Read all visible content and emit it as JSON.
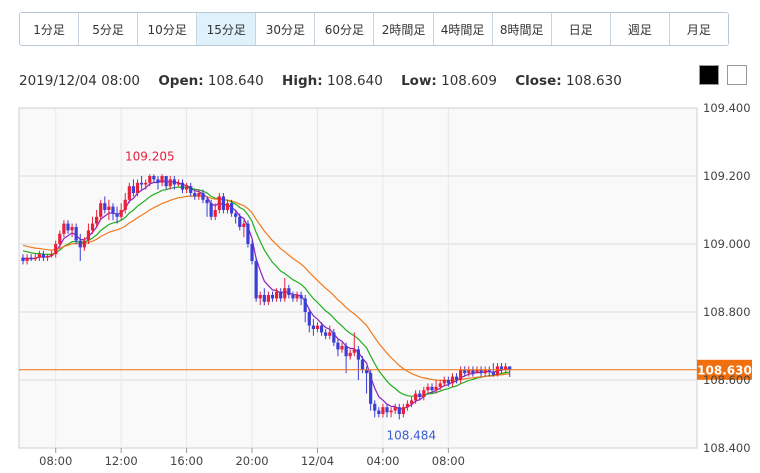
{
  "tabs": [
    {
      "label": "1分足"
    },
    {
      "label": "5分足"
    },
    {
      "label": "10分足"
    },
    {
      "label": "15分足",
      "active": true
    },
    {
      "label": "30分足"
    },
    {
      "label": "60分足"
    },
    {
      "label": "2時間足"
    },
    {
      "label": "4時間足"
    },
    {
      "label": "8時間足"
    },
    {
      "label": "日足"
    },
    {
      "label": "週足"
    },
    {
      "label": "月足"
    }
  ],
  "info": {
    "datetime": "2019/12/04 08:00",
    "open_label": "Open:",
    "open": "108.640",
    "high_label": "High:",
    "high": "108.640",
    "low_label": "Low:",
    "low": "108.609",
    "close_label": "Close:",
    "close": "108.630"
  },
  "colors": {
    "up": "#e8203c",
    "down": "#3b3fd6",
    "ma_short": "#8b22c9",
    "ma_mid": "#1fae1f",
    "ma_long": "#f07a1e",
    "last_price": "#f07010",
    "hi_label": "#e8203c",
    "lo_label": "#3b5ed6"
  },
  "chart_data": {
    "type": "candlestick",
    "y_ticks": [
      "109.400",
      "109.200",
      "109.000",
      "108.800",
      "108.600",
      "108.400"
    ],
    "ylim": [
      108.4,
      109.4
    ],
    "x_ticks": [
      "08:00",
      "12:00",
      "16:00",
      "20:00",
      "12/04",
      "04:00",
      "08:00"
    ],
    "high_label": "109.205",
    "low_label": "108.484",
    "last_price": "108.630",
    "start_time": "2019/12/03 06:00",
    "interval_minutes": 15,
    "candles": [
      [
        108.96,
        108.95,
        108.97,
        108.94
      ],
      [
        108.95,
        108.96,
        108.97,
        108.94
      ],
      [
        108.96,
        108.955,
        108.97,
        108.95
      ],
      [
        108.955,
        108.96,
        108.97,
        108.95
      ],
      [
        108.96,
        108.97,
        108.98,
        108.95
      ],
      [
        108.97,
        108.96,
        108.98,
        108.95
      ],
      [
        108.96,
        108.965,
        108.97,
        108.95
      ],
      [
        108.965,
        108.97,
        108.98,
        108.96
      ],
      [
        108.97,
        109.0,
        109.01,
        108.96
      ],
      [
        109.0,
        109.03,
        109.04,
        108.99
      ],
      [
        109.03,
        109.06,
        109.07,
        109.02
      ],
      [
        109.06,
        109.04,
        109.07,
        109.03
      ],
      [
        109.04,
        109.05,
        109.06,
        109.02
      ],
      [
        109.05,
        109.01,
        109.06,
        109.0
      ],
      [
        109.01,
        108.99,
        109.03,
        108.95
      ],
      [
        108.99,
        109.01,
        109.02,
        108.98
      ],
      [
        109.01,
        109.04,
        109.06,
        109.0
      ],
      [
        109.04,
        109.06,
        109.08,
        109.03
      ],
      [
        109.06,
        109.08,
        109.1,
        109.05
      ],
      [
        109.08,
        109.12,
        109.13,
        109.07
      ],
      [
        109.12,
        109.1,
        109.14,
        109.09
      ],
      [
        109.1,
        109.11,
        109.13,
        109.07
      ],
      [
        109.11,
        109.09,
        109.12,
        109.07
      ],
      [
        109.09,
        109.08,
        109.11,
        109.06
      ],
      [
        109.08,
        109.1,
        109.12,
        109.07
      ],
      [
        109.1,
        109.13,
        109.15,
        109.09
      ],
      [
        109.13,
        109.17,
        109.18,
        109.12
      ],
      [
        109.17,
        109.15,
        109.19,
        109.14
      ],
      [
        109.15,
        109.18,
        109.19,
        109.14
      ],
      [
        109.18,
        109.175,
        109.2,
        109.16
      ],
      [
        109.175,
        109.18,
        109.19,
        109.16
      ],
      [
        109.18,
        109.2,
        109.205,
        109.17
      ],
      [
        109.2,
        109.19,
        109.205,
        109.18
      ],
      [
        109.19,
        109.18,
        109.2,
        109.16
      ],
      [
        109.18,
        109.2,
        109.205,
        109.17
      ],
      [
        109.2,
        109.17,
        109.2,
        109.16
      ],
      [
        109.17,
        109.19,
        109.2,
        109.16
      ],
      [
        109.19,
        109.175,
        109.2,
        109.16
      ],
      [
        109.175,
        109.18,
        109.19,
        109.17
      ],
      [
        109.18,
        109.16,
        109.19,
        109.15
      ],
      [
        109.16,
        109.17,
        109.18,
        109.15
      ],
      [
        109.17,
        109.15,
        109.18,
        109.14
      ],
      [
        109.15,
        109.14,
        109.16,
        109.13
      ],
      [
        109.14,
        109.15,
        109.16,
        109.13
      ],
      [
        109.15,
        109.13,
        109.16,
        109.12
      ],
      [
        109.13,
        109.12,
        109.14,
        109.08
      ],
      [
        109.12,
        109.08,
        109.13,
        109.07
      ],
      [
        109.08,
        109.1,
        109.12,
        109.07
      ],
      [
        109.1,
        109.14,
        109.15,
        109.09
      ],
      [
        109.14,
        109.1,
        109.15,
        109.09
      ],
      [
        109.1,
        109.12,
        109.13,
        109.09
      ],
      [
        109.12,
        109.09,
        109.13,
        109.08
      ],
      [
        109.09,
        109.08,
        109.1,
        109.06
      ],
      [
        109.08,
        109.05,
        109.09,
        109.04
      ],
      [
        109.05,
        109.06,
        109.07,
        109.02
      ],
      [
        109.06,
        109.0,
        109.07,
        108.99
      ],
      [
        109.0,
        108.95,
        109.01,
        108.94
      ],
      [
        108.95,
        108.84,
        108.96,
        108.83
      ],
      [
        108.84,
        108.85,
        108.86,
        108.82
      ],
      [
        108.85,
        108.83,
        108.87,
        108.82
      ],
      [
        108.83,
        108.85,
        108.86,
        108.82
      ],
      [
        108.85,
        108.84,
        108.86,
        108.83
      ],
      [
        108.84,
        108.86,
        108.87,
        108.83
      ],
      [
        108.86,
        108.84,
        108.87,
        108.83
      ],
      [
        108.84,
        108.87,
        108.9,
        108.83
      ],
      [
        108.87,
        108.85,
        108.88,
        108.84
      ],
      [
        108.85,
        108.84,
        108.86,
        108.83
      ],
      [
        108.84,
        108.85,
        108.86,
        108.83
      ],
      [
        108.85,
        108.84,
        108.86,
        108.82
      ],
      [
        108.84,
        108.8,
        108.85,
        108.77
      ],
      [
        108.8,
        108.76,
        108.81,
        108.74
      ],
      [
        108.76,
        108.75,
        108.78,
        108.73
      ],
      [
        108.75,
        108.76,
        108.77,
        108.74
      ],
      [
        108.76,
        108.74,
        108.77,
        108.73
      ],
      [
        108.74,
        108.73,
        108.75,
        108.72
      ],
      [
        108.73,
        108.74,
        108.76,
        108.72
      ],
      [
        108.74,
        108.71,
        108.75,
        108.7
      ],
      [
        108.71,
        108.69,
        108.72,
        108.67
      ],
      [
        108.69,
        108.7,
        108.71,
        108.68
      ],
      [
        108.7,
        108.67,
        108.71,
        108.62
      ],
      [
        108.67,
        108.68,
        108.69,
        108.66
      ],
      [
        108.68,
        108.69,
        108.74,
        108.67
      ],
      [
        108.69,
        108.66,
        108.7,
        108.6
      ],
      [
        108.66,
        108.63,
        108.67,
        108.62
      ],
      [
        108.63,
        108.62,
        108.64,
        108.56
      ],
      [
        108.62,
        108.53,
        108.63,
        108.51
      ],
      [
        108.53,
        108.51,
        108.54,
        108.49
      ],
      [
        108.51,
        108.5,
        108.52,
        108.49
      ],
      [
        108.5,
        108.52,
        108.53,
        108.49
      ],
      [
        108.52,
        108.505,
        108.53,
        108.49
      ],
      [
        108.505,
        108.51,
        108.52,
        108.49
      ],
      [
        108.51,
        108.52,
        108.53,
        108.5
      ],
      [
        108.52,
        108.5,
        108.53,
        108.484
      ],
      [
        108.5,
        108.52,
        108.53,
        108.49
      ],
      [
        108.52,
        108.53,
        108.54,
        108.51
      ],
      [
        108.53,
        108.54,
        108.55,
        108.52
      ],
      [
        108.54,
        108.56,
        108.57,
        108.53
      ],
      [
        108.56,
        108.55,
        108.57,
        108.54
      ],
      [
        108.55,
        108.57,
        108.58,
        108.54
      ],
      [
        108.57,
        108.58,
        108.59,
        108.56
      ],
      [
        108.58,
        108.57,
        108.59,
        108.56
      ],
      [
        108.57,
        108.58,
        108.6,
        108.56
      ],
      [
        108.58,
        108.59,
        108.6,
        108.57
      ],
      [
        108.59,
        108.6,
        108.61,
        108.58
      ],
      [
        108.6,
        108.59,
        108.61,
        108.58
      ],
      [
        108.59,
        108.61,
        108.62,
        108.58
      ],
      [
        108.61,
        108.6,
        108.62,
        108.59
      ],
      [
        108.6,
        108.63,
        108.64,
        108.59
      ],
      [
        108.63,
        108.62,
        108.64,
        108.61
      ],
      [
        108.62,
        108.63,
        108.64,
        108.61
      ],
      [
        108.63,
        108.62,
        108.64,
        108.61
      ],
      [
        108.62,
        108.63,
        108.64,
        108.62
      ],
      [
        108.63,
        108.62,
        108.64,
        108.61
      ],
      [
        108.62,
        108.63,
        108.64,
        108.61
      ],
      [
        108.63,
        108.625,
        108.64,
        108.61
      ],
      [
        108.625,
        108.615,
        108.65,
        108.61
      ],
      [
        108.615,
        108.64,
        108.65,
        108.61
      ],
      [
        108.64,
        108.63,
        108.65,
        108.62
      ],
      [
        108.63,
        108.64,
        108.65,
        108.62
      ],
      [
        108.64,
        108.63,
        108.64,
        108.609
      ]
    ]
  }
}
